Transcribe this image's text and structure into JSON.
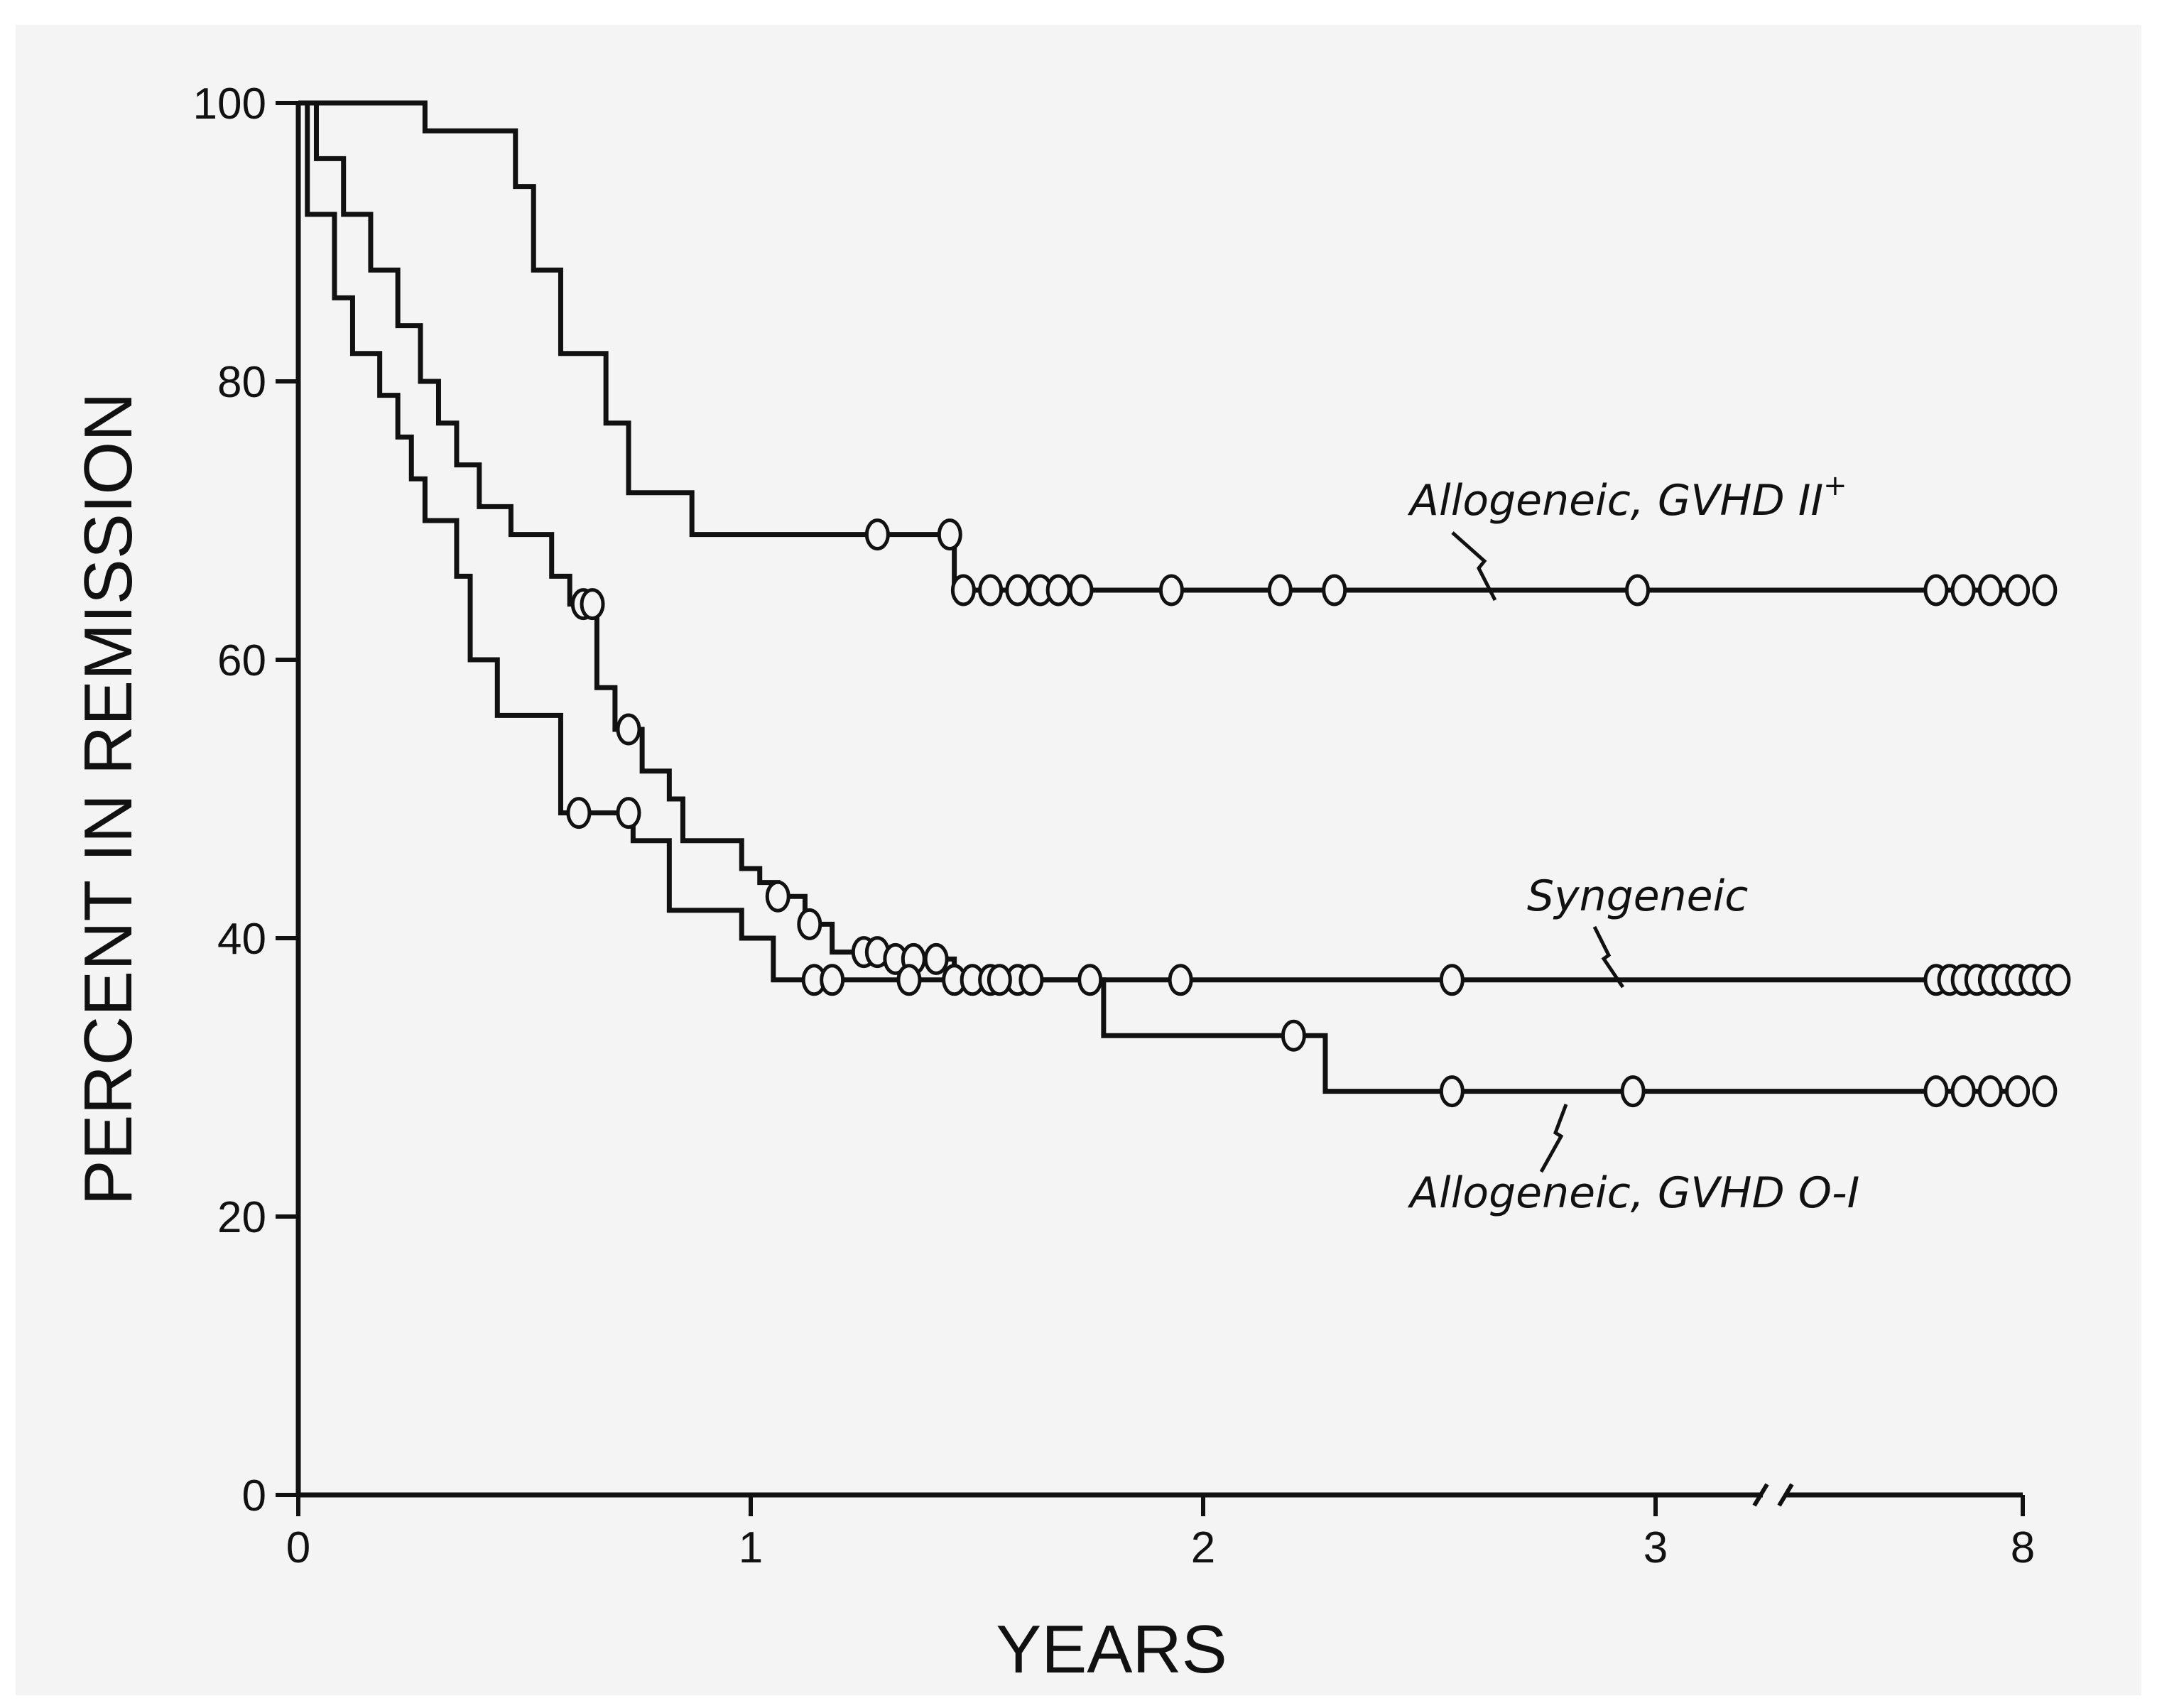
{
  "chart_data": {
    "type": "line",
    "subtype": "kaplan-meier survival step curves",
    "xlabel": "YEARS",
    "ylabel": "PERCENT IN REMISSION",
    "xlim": [
      0,
      8
    ],
    "ylim": [
      0,
      100
    ],
    "axis_break": "x axis is broken between 3 and 8 years",
    "x_ticks": [
      {
        "value": 0,
        "label": "0"
      },
      {
        "value": 1,
        "label": "1"
      },
      {
        "value": 2,
        "label": "2"
      },
      {
        "value": 3,
        "label": "3"
      },
      {
        "value": 8,
        "label": "8"
      }
    ],
    "y_ticks": [
      {
        "value": 0,
        "label": "0"
      },
      {
        "value": 20,
        "label": "20"
      },
      {
        "value": 40,
        "label": "40"
      },
      {
        "value": 60,
        "label": "60"
      },
      {
        "value": 80,
        "label": "80"
      },
      {
        "value": 100,
        "label": "100"
      }
    ],
    "grid": false,
    "legend": "none; series labeled directly with leader lines",
    "series": [
      {
        "name": "Allogeneic, GVHD II+",
        "label_text": "Allogeneic, GVHD II",
        "label_superscript": "+",
        "steps": [
          [
            0,
            100
          ],
          [
            0.28,
            98
          ],
          [
            0.48,
            94
          ],
          [
            0.52,
            88
          ],
          [
            0.58,
            82
          ],
          [
            0.68,
            77
          ],
          [
            0.73,
            72
          ],
          [
            0.87,
            69
          ],
          [
            1.45,
            65
          ],
          [
            8,
            65
          ]
        ],
        "censored": [
          1.28,
          1.44,
          1.47,
          1.53,
          1.59,
          1.64,
          1.68,
          1.73,
          1.93,
          2.17,
          2.29,
          2.96,
          3.62,
          3.68,
          3.74,
          3.8,
          3.86
        ]
      },
      {
        "name": "Syngeneic",
        "label_text": "Syngeneic",
        "steps": [
          [
            0,
            100
          ],
          [
            0.04,
            96
          ],
          [
            0.1,
            92
          ],
          [
            0.16,
            88
          ],
          [
            0.22,
            84
          ],
          [
            0.27,
            80
          ],
          [
            0.31,
            77
          ],
          [
            0.35,
            74
          ],
          [
            0.4,
            71
          ],
          [
            0.47,
            69
          ],
          [
            0.56,
            66
          ],
          [
            0.6,
            64
          ],
          [
            0.66,
            58
          ],
          [
            0.7,
            55
          ],
          [
            0.76,
            52
          ],
          [
            0.82,
            50
          ],
          [
            0.85,
            47
          ],
          [
            0.98,
            45
          ],
          [
            1.02,
            44
          ],
          [
            1.06,
            43
          ],
          [
            1.12,
            41
          ],
          [
            1.18,
            39
          ],
          [
            1.32,
            38.5
          ],
          [
            1.45,
            37
          ],
          [
            8,
            37
          ]
        ],
        "censored": [
          0.63,
          0.65,
          0.73,
          1.06,
          1.13,
          1.25,
          1.28,
          1.32,
          1.36,
          1.41,
          1.45,
          1.49,
          1.53,
          1.59,
          1.75,
          1.95,
          2.55,
          3.62,
          3.65,
          3.68,
          3.71,
          3.74,
          3.77,
          3.8,
          3.83,
          3.86,
          3.89
        ]
      },
      {
        "name": "Allogeneic, GVHD 0-I",
        "label_text": "Allogeneic, GVHD O-I",
        "steps": [
          [
            0,
            100
          ],
          [
            0.02,
            92
          ],
          [
            0.08,
            86
          ],
          [
            0.12,
            82
          ],
          [
            0.18,
            79
          ],
          [
            0.22,
            76
          ],
          [
            0.25,
            73
          ],
          [
            0.28,
            70
          ],
          [
            0.35,
            66
          ],
          [
            0.38,
            60
          ],
          [
            0.44,
            56
          ],
          [
            0.58,
            49
          ],
          [
            0.74,
            47
          ],
          [
            0.82,
            42
          ],
          [
            0.98,
            40
          ],
          [
            1.05,
            37
          ],
          [
            1.78,
            33
          ],
          [
            2.27,
            29
          ],
          [
            8,
            29
          ]
        ],
        "censored": [
          0.62,
          0.73,
          1.14,
          1.18,
          1.35,
          1.55,
          1.62,
          2.2,
          2.55,
          2.95,
          3.62,
          3.68,
          3.74,
          3.8,
          3.86
        ]
      }
    ]
  }
}
